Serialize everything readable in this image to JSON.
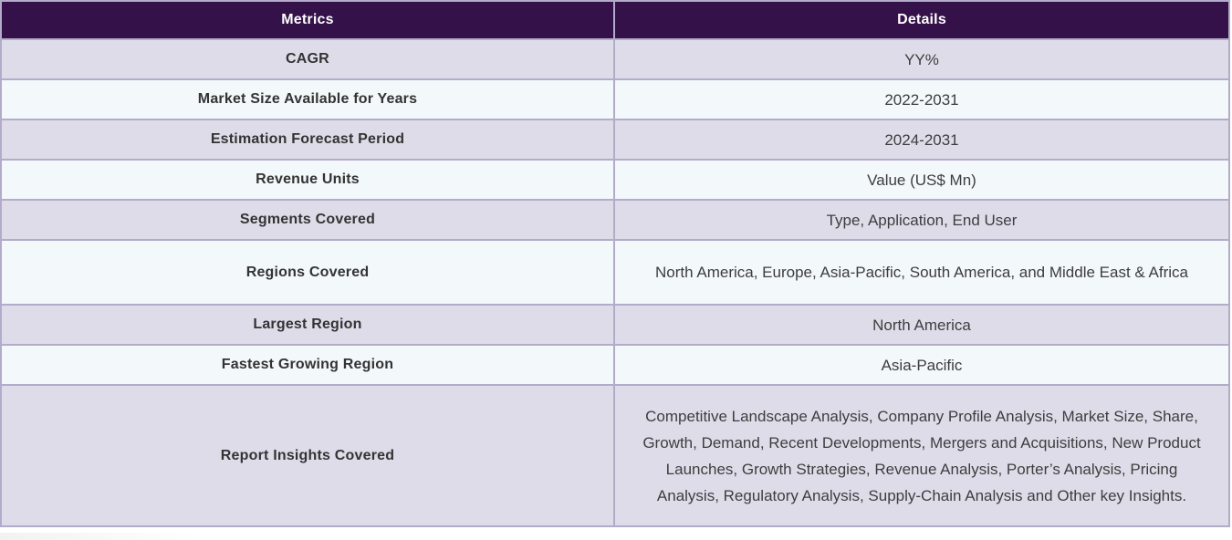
{
  "colors": {
    "header_bg": "#351149",
    "header_text": "#ffffff",
    "row_lavender": "#dfdcea",
    "row_light": "#f3f8fb",
    "border": "#b2abc9",
    "metric_text": "#333333",
    "detail_text": "#3d3d3d"
  },
  "table": {
    "columns": [
      "Metrics",
      "Details"
    ],
    "rows": [
      {
        "metric": "CAGR",
        "detail": "YY%"
      },
      {
        "metric": "Market Size Available for Years",
        "detail": "2022-2031"
      },
      {
        "metric": "Estimation Forecast Period",
        "detail": "2024-2031"
      },
      {
        "metric": "Revenue Units",
        "detail": "Value (US$ Mn)"
      },
      {
        "metric": "Segments Covered",
        "detail": "Type, Application, End User"
      },
      {
        "metric": "Regions Covered",
        "detail": "North America, Europe, Asia-Pacific, South America, and Middle East & Africa"
      },
      {
        "metric": "Largest Region",
        "detail": "North America"
      },
      {
        "metric": "Fastest Growing Region",
        "detail": "Asia-Pacific"
      },
      {
        "metric": "Report Insights Covered",
        "detail": "Competitive Landscape Analysis, Company Profile Analysis, Market Size, Share, Growth, Demand, Recent Developments, Mergers and Acquisitions, New Product Launches, Growth Strategies, Revenue Analysis, Porter’s Analysis, Pricing Analysis, Regulatory Analysis, Supply-Chain Analysis and Other key Insights."
      }
    ]
  }
}
